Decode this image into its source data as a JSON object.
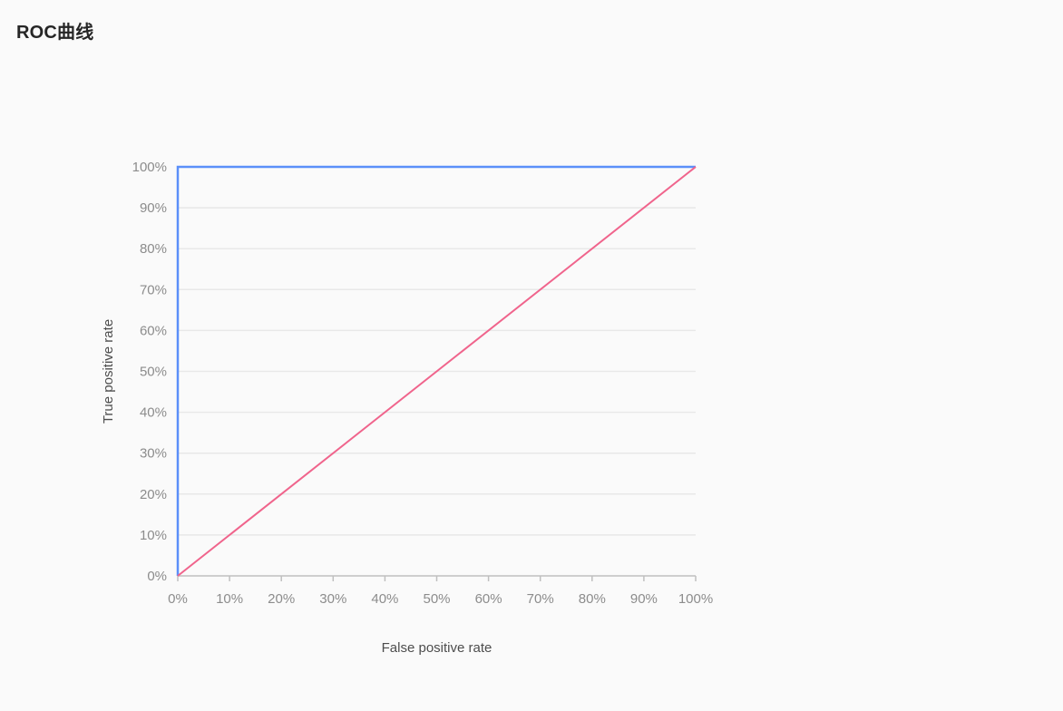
{
  "page": {
    "title": "ROC曲线"
  },
  "colors": {
    "background": "#fafafa",
    "roc_curve": "#5b8ff9",
    "baseline": "#f0648c",
    "grid": "#e8e8e8",
    "axis": "#bfbfbf",
    "tick_text": "#8c8c8c"
  },
  "chart_data": {
    "type": "line",
    "title": "",
    "xlabel": "False positive rate",
    "ylabel": "True positive rate",
    "xlim": [
      0,
      100
    ],
    "ylim": [
      0,
      100
    ],
    "x_ticks": [
      "0%",
      "10%",
      "20%",
      "30%",
      "40%",
      "50%",
      "60%",
      "70%",
      "80%",
      "90%",
      "100%"
    ],
    "y_ticks": [
      "0%",
      "10%",
      "20%",
      "30%",
      "40%",
      "50%",
      "60%",
      "70%",
      "80%",
      "90%",
      "100%"
    ],
    "grid": "horizontal",
    "series": [
      {
        "x": [
          0,
          0,
          100
        ],
        "y": [
          0,
          100,
          100
        ],
        "color": "#5b8ff9",
        "style": "solid"
      },
      {
        "x": [
          0,
          100
        ],
        "y": [
          0,
          100
        ],
        "color": "#f0648c",
        "style": "solid"
      }
    ]
  }
}
